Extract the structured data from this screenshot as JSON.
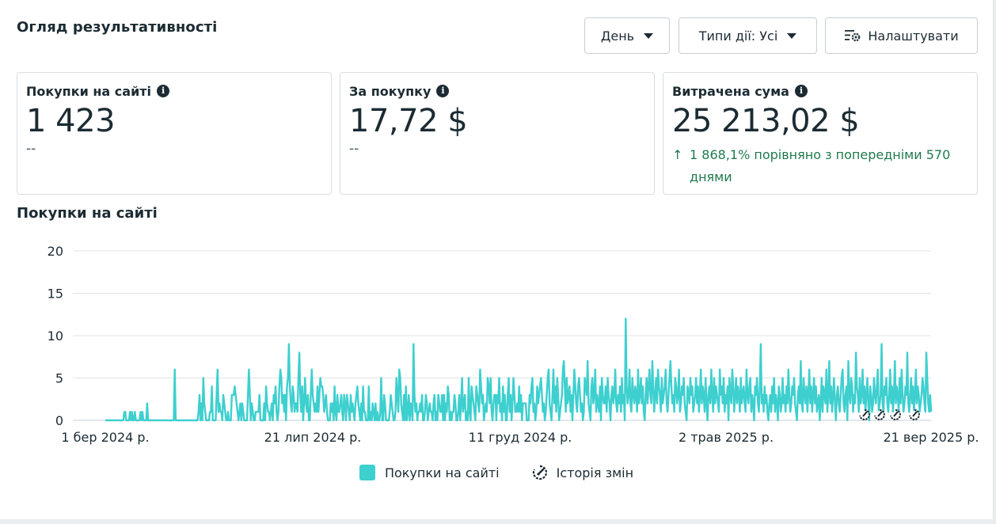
{
  "header": {
    "title": "Огляд результативності",
    "day_label": "День",
    "types_label": "Типи дії: Усі",
    "settings_label": "Налаштувати"
  },
  "cards": {
    "purchases": {
      "label": "Покупки на сайті",
      "value": "1 423",
      "sub": "--"
    },
    "per_purchase": {
      "label": "За покупку",
      "value": "17,72 $",
      "sub": "--"
    },
    "spent": {
      "label": "Витрачена сума",
      "value": "25 213,02 $",
      "delta": "1 868,1% порівняно з попередніми 570 днями"
    }
  },
  "chart_title": "Покупки на сайті",
  "legend": {
    "series": "Покупки на сайті",
    "history": "Історія змін"
  },
  "colors": {
    "series": "#3ecfcf",
    "text": "#1c2b33",
    "positive": "#1f7a4d"
  },
  "chart_data": {
    "type": "line",
    "ylim": [
      0,
      20
    ],
    "yticks": [
      0,
      5,
      10,
      15,
      20
    ],
    "x_tick_labels": [
      "1 бер 2024 р.",
      "21 лип 2024 р.",
      "11 груд 2024 р.",
      "2 трав 2025 р.",
      "21 вер 2025 р."
    ],
    "x_start": "2024-03-01",
    "x_end": "2025-09-21",
    "series": [
      {
        "name": "Покупки на сайті",
        "values": [
          0,
          0,
          0,
          0,
          0,
          0,
          0,
          0,
          0,
          0,
          0,
          0,
          0,
          0,
          0,
          0,
          0,
          0,
          0,
          0,
          1,
          1,
          0,
          0,
          0,
          0,
          1,
          0,
          1,
          0,
          0,
          1,
          0,
          0,
          0,
          0,
          0,
          1,
          0,
          1,
          0,
          0,
          0,
          0,
          2,
          0,
          0,
          0,
          0,
          0,
          0,
          0,
          0,
          0,
          0,
          0,
          0,
          0,
          0,
          0,
          0,
          0,
          0,
          0,
          0,
          0,
          0,
          0,
          0,
          0,
          0,
          0,
          0,
          6,
          0,
          0,
          0,
          0,
          0,
          0,
          0,
          0,
          0,
          0,
          0,
          0,
          0,
          0,
          0,
          0,
          0,
          0,
          0,
          0,
          0,
          0,
          0,
          0,
          1,
          3,
          0,
          2,
          0,
          5,
          2,
          1,
          0,
          0,
          0,
          0,
          1,
          1,
          4,
          0,
          0,
          0,
          0,
          3,
          6,
          1,
          2,
          1,
          1,
          0,
          3,
          2,
          1,
          0,
          0,
          1,
          0,
          0,
          0,
          3,
          3,
          3,
          4,
          3,
          2,
          1,
          0,
          1,
          2,
          0,
          2,
          1,
          0,
          0,
          0,
          0,
          3,
          6,
          3,
          0,
          2,
          1,
          0,
          0,
          1,
          1,
          1,
          1,
          3,
          0,
          0,
          0,
          0,
          2,
          0,
          4,
          2,
          1,
          1,
          0,
          1,
          2,
          0,
          3,
          2,
          4,
          1,
          0,
          1,
          4,
          6,
          5,
          2,
          3,
          1,
          3,
          0,
          4,
          5,
          9,
          4,
          2,
          1,
          4,
          3,
          1,
          2,
          2,
          1,
          5,
          8,
          3,
          1,
          4,
          0,
          2,
          5,
          2,
          1,
          3,
          0,
          0,
          3,
          6,
          3,
          2,
          1,
          2,
          1,
          4,
          1,
          3,
          5,
          4,
          4,
          3,
          1,
          2,
          3,
          1,
          0,
          0,
          0,
          2,
          1,
          2,
          0,
          4,
          1,
          0,
          3,
          1,
          1,
          2,
          3,
          1,
          0,
          3,
          2,
          0,
          3,
          2,
          1,
          0,
          3,
          1,
          2,
          1,
          0,
          2,
          3,
          4,
          2,
          1,
          0,
          2,
          0,
          4,
          1,
          1,
          0,
          0,
          0,
          4,
          0,
          1,
          0,
          2,
          1,
          0,
          2,
          0,
          1,
          0,
          0,
          1,
          5,
          0,
          0,
          3,
          2,
          0,
          0,
          0,
          0,
          1,
          3,
          2,
          1,
          0,
          0,
          1,
          5,
          3,
          1,
          6,
          5,
          2,
          1,
          0,
          3,
          0,
          4,
          0,
          1,
          3,
          0,
          2,
          1,
          0,
          9,
          3,
          1,
          2,
          0,
          1,
          1,
          2,
          1,
          3,
          0,
          0,
          1,
          3,
          2,
          0,
          1,
          2,
          1,
          1,
          0,
          2,
          3,
          0,
          1,
          0,
          3,
          2,
          1,
          1,
          3,
          0,
          3,
          0,
          2,
          1,
          4,
          3,
          0,
          1,
          0,
          1,
          1,
          3,
          2,
          0,
          0,
          1,
          3,
          0,
          2,
          5,
          1,
          2,
          3,
          0,
          1,
          0,
          5,
          1,
          0,
          4,
          3,
          2,
          1,
          0,
          4,
          3,
          2,
          1,
          6,
          4,
          2,
          3,
          0,
          1,
          2,
          1,
          5,
          4,
          2,
          5,
          1,
          0,
          2,
          3,
          3,
          0,
          3,
          2,
          5,
          1,
          2,
          0,
          4,
          1,
          3,
          0,
          0,
          3,
          5,
          1,
          3,
          0,
          2,
          5,
          3,
          1,
          1,
          2,
          1,
          4,
          1,
          3,
          0,
          2,
          2,
          2,
          2,
          0,
          0,
          0,
          3,
          2,
          4,
          5,
          1,
          2,
          0,
          1,
          4,
          2,
          3,
          4,
          5,
          3,
          1,
          2,
          0,
          1,
          3,
          5,
          6,
          2,
          1,
          0,
          3,
          6,
          2,
          4,
          1,
          5,
          3,
          0,
          1,
          2,
          3,
          6,
          7,
          4,
          1,
          5,
          2,
          3,
          4,
          1,
          3,
          0,
          3,
          6,
          4,
          2,
          1,
          4,
          5,
          3,
          1,
          2,
          0,
          1,
          5,
          4,
          3,
          7,
          2,
          1,
          0,
          4,
          5,
          2,
          3,
          6,
          1,
          3,
          2,
          1,
          4,
          0,
          5,
          3,
          2,
          2,
          4,
          1,
          5,
          3,
          2,
          0,
          3,
          4,
          2,
          3,
          6,
          2,
          1,
          3,
          2,
          4,
          1,
          5,
          2,
          3,
          0,
          12,
          4,
          2,
          3,
          6,
          2,
          1,
          5,
          3,
          2,
          4,
          3,
          1,
          6,
          2,
          3,
          5,
          2,
          4,
          1,
          0,
          3,
          5,
          2,
          4,
          6,
          3,
          2,
          7,
          4,
          1,
          3,
          5,
          2,
          6,
          4,
          3,
          1,
          5,
          2,
          3,
          4,
          6,
          2,
          1,
          3,
          5,
          7,
          4,
          2,
          3,
          1,
          5,
          4,
          2,
          3,
          6,
          1,
          2,
          4,
          3,
          5,
          2,
          1,
          0,
          4,
          3,
          2,
          5,
          3,
          4,
          1,
          2,
          3,
          5,
          2,
          4,
          1,
          3,
          6,
          2,
          4,
          3,
          1,
          5,
          2,
          0,
          3,
          4,
          2,
          6,
          3,
          1,
          5,
          2,
          4,
          3,
          2,
          1,
          6,
          3,
          4,
          2,
          5,
          1,
          3,
          2,
          4,
          0,
          5,
          3,
          2,
          6,
          4,
          1,
          3,
          5,
          2,
          4,
          3,
          1,
          5,
          2,
          3,
          4,
          2,
          1,
          6,
          3,
          2,
          4,
          5,
          1,
          3,
          2,
          0,
          4,
          3,
          5,
          2,
          1,
          4,
          9,
          2,
          3,
          1,
          4,
          2,
          3,
          1,
          0,
          2,
          3,
          1,
          4,
          2,
          5,
          1,
          3,
          2,
          0,
          4,
          3,
          1,
          2,
          5,
          2,
          3,
          1,
          4,
          2,
          6,
          3,
          1,
          2,
          4,
          3,
          5,
          2,
          1,
          0,
          3,
          4,
          2,
          7,
          2,
          1,
          5,
          3,
          2,
          4,
          1,
          3,
          6,
          2,
          4,
          1,
          3,
          5,
          2,
          4,
          1,
          2,
          3,
          0,
          2,
          5,
          1,
          4,
          3,
          2,
          6,
          1,
          3,
          7,
          2,
          4,
          1,
          3,
          5,
          2,
          0,
          3,
          4,
          2,
          1,
          3,
          5,
          6,
          2,
          1,
          3,
          4,
          0,
          7,
          3,
          2,
          5,
          4,
          1,
          3,
          2,
          8,
          4,
          3,
          1,
          5,
          2,
          3,
          6,
          2,
          4,
          1,
          3,
          5,
          2,
          0,
          4,
          3,
          1,
          2,
          5,
          3,
          2,
          4,
          6,
          1,
          2,
          3,
          9,
          2,
          1,
          4,
          3,
          5,
          2,
          1,
          3,
          6,
          2,
          4,
          1,
          3,
          7,
          2,
          4,
          3,
          1,
          5,
          2,
          6,
          3,
          1,
          2,
          4,
          3,
          8,
          2,
          1,
          3,
          5,
          2,
          4,
          1,
          3,
          6,
          2,
          4,
          3,
          1,
          2,
          3,
          5,
          4,
          2,
          1,
          8,
          5,
          2,
          1,
          3,
          1
        ]
      }
    ]
  }
}
